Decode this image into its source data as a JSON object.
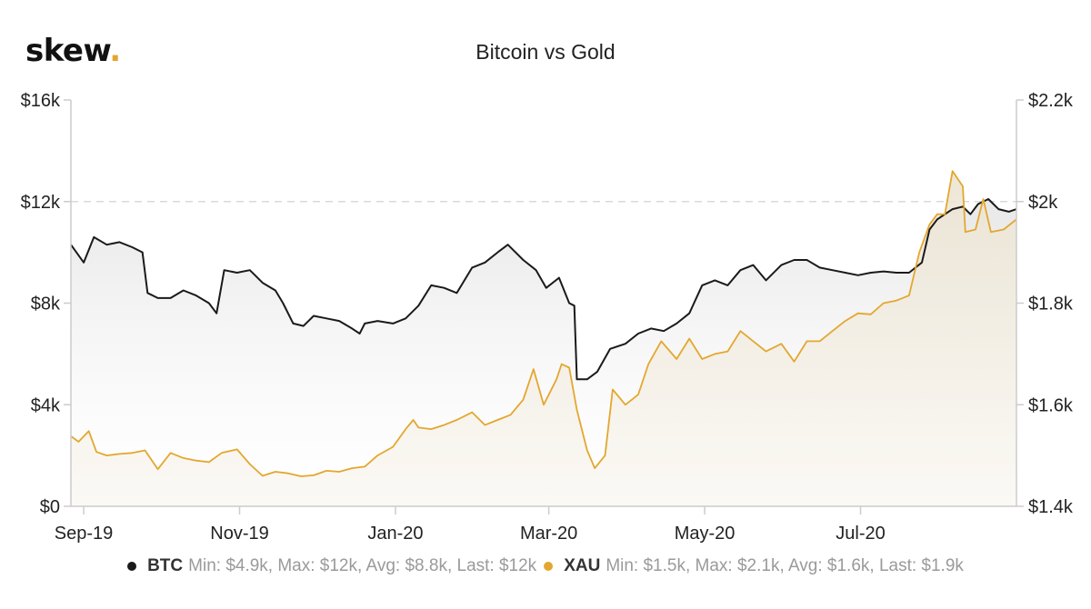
{
  "header": {
    "logo_text": "skew",
    "logo_dot": "."
  },
  "chart_data": {
    "type": "line",
    "title": "Bitcoin vs Gold",
    "x_ticks": [
      {
        "label": "Sep-19",
        "date": "2019-09-01"
      },
      {
        "label": "Nov-19",
        "date": "2019-11-01"
      },
      {
        "label": "Jan-20",
        "date": "2020-01-01"
      },
      {
        "label": "Mar-20",
        "date": "2020-03-01"
      },
      {
        "label": "May-20",
        "date": "2020-05-01"
      },
      {
        "label": "Jul-20",
        "date": "2020-07-01"
      }
    ],
    "x_range": [
      "2019-08-27",
      "2020-08-31"
    ],
    "y_left": {
      "range": [
        0,
        16000
      ],
      "ticks": [
        {
          "value": 0,
          "label": "$0"
        },
        {
          "value": 4000,
          "label": "$4k"
        },
        {
          "value": 8000,
          "label": "$8k"
        },
        {
          "value": 12000,
          "label": "$12k"
        },
        {
          "value": 16000,
          "label": "$16k"
        }
      ]
    },
    "y_right": {
      "range": [
        1400,
        2200
      ],
      "ticks": [
        {
          "value": 1400,
          "label": "$1.4k"
        },
        {
          "value": 1600,
          "label": "$1.6k"
        },
        {
          "value": 1800,
          "label": "$1.8k"
        },
        {
          "value": 2000,
          "label": "$2k"
        },
        {
          "value": 2200,
          "label": "$2.2k"
        }
      ]
    },
    "grid": "horizontal dashed at $12k",
    "legend_position": "bottom",
    "series": [
      {
        "name": "BTC",
        "axis": "left",
        "color": "#1a1a1a",
        "stats": "Min: $4.9k, Max: $12k, Avg: $8.8k, Last: $12k",
        "points": [
          [
            "2019-08-27",
            10300
          ],
          [
            "2019-09-01",
            9600
          ],
          [
            "2019-09-05",
            10600
          ],
          [
            "2019-09-10",
            10300
          ],
          [
            "2019-09-15",
            10400
          ],
          [
            "2019-09-20",
            10200
          ],
          [
            "2019-09-24",
            10000
          ],
          [
            "2019-09-26",
            8400
          ],
          [
            "2019-09-30",
            8200
          ],
          [
            "2019-10-05",
            8200
          ],
          [
            "2019-10-10",
            8500
          ],
          [
            "2019-10-15",
            8300
          ],
          [
            "2019-10-20",
            8000
          ],
          [
            "2019-10-23",
            7600
          ],
          [
            "2019-10-26",
            9300
          ],
          [
            "2019-10-31",
            9200
          ],
          [
            "2019-11-05",
            9300
          ],
          [
            "2019-11-10",
            8800
          ],
          [
            "2019-11-15",
            8500
          ],
          [
            "2019-11-18",
            8000
          ],
          [
            "2019-11-22",
            7200
          ],
          [
            "2019-11-26",
            7100
          ],
          [
            "2019-11-30",
            7500
          ],
          [
            "2019-12-05",
            7400
          ],
          [
            "2019-12-10",
            7300
          ],
          [
            "2019-12-15",
            7000
          ],
          [
            "2019-12-18",
            6800
          ],
          [
            "2019-12-20",
            7200
          ],
          [
            "2019-12-25",
            7300
          ],
          [
            "2019-12-31",
            7200
          ],
          [
            "2020-01-05",
            7400
          ],
          [
            "2020-01-10",
            7900
          ],
          [
            "2020-01-15",
            8700
          ],
          [
            "2020-01-20",
            8600
          ],
          [
            "2020-01-25",
            8400
          ],
          [
            "2020-01-31",
            9400
          ],
          [
            "2020-02-05",
            9600
          ],
          [
            "2020-02-10",
            10000
          ],
          [
            "2020-02-14",
            10300
          ],
          [
            "2020-02-20",
            9700
          ],
          [
            "2020-02-25",
            9300
          ],
          [
            "2020-02-29",
            8600
          ],
          [
            "2020-03-05",
            9000
          ],
          [
            "2020-03-09",
            8000
          ],
          [
            "2020-03-11",
            7900
          ],
          [
            "2020-03-12",
            5000
          ],
          [
            "2020-03-16",
            5000
          ],
          [
            "2020-03-20",
            5300
          ],
          [
            "2020-03-25",
            6200
          ],
          [
            "2020-03-31",
            6400
          ],
          [
            "2020-04-05",
            6800
          ],
          [
            "2020-04-10",
            7000
          ],
          [
            "2020-04-15",
            6900
          ],
          [
            "2020-04-20",
            7200
          ],
          [
            "2020-04-25",
            7600
          ],
          [
            "2020-04-30",
            8700
          ],
          [
            "2020-05-05",
            8900
          ],
          [
            "2020-05-10",
            8700
          ],
          [
            "2020-05-15",
            9300
          ],
          [
            "2020-05-20",
            9500
          ],
          [
            "2020-05-25",
            8900
          ],
          [
            "2020-05-31",
            9500
          ],
          [
            "2020-06-05",
            9700
          ],
          [
            "2020-06-10",
            9700
          ],
          [
            "2020-06-15",
            9400
          ],
          [
            "2020-06-20",
            9300
          ],
          [
            "2020-06-25",
            9200
          ],
          [
            "2020-06-30",
            9100
          ],
          [
            "2020-07-05",
            9200
          ],
          [
            "2020-07-10",
            9250
          ],
          [
            "2020-07-15",
            9200
          ],
          [
            "2020-07-20",
            9200
          ],
          [
            "2020-07-25",
            9600
          ],
          [
            "2020-07-28",
            10900
          ],
          [
            "2020-07-31",
            11300
          ],
          [
            "2020-08-03",
            11500
          ],
          [
            "2020-08-06",
            11700
          ],
          [
            "2020-08-10",
            11800
          ],
          [
            "2020-08-13",
            11500
          ],
          [
            "2020-08-16",
            11900
          ],
          [
            "2020-08-20",
            12100
          ],
          [
            "2020-08-24",
            11700
          ],
          [
            "2020-08-28",
            11600
          ],
          [
            "2020-08-31",
            11700
          ]
        ]
      },
      {
        "name": "XAU",
        "axis": "right",
        "color": "#e3a72f",
        "stats": "Min: $1.5k, Max: $2.1k, Avg: $1.6k, Last: $1.9k",
        "points": [
          [
            "2019-08-27",
            1538
          ],
          [
            "2019-08-30",
            1527
          ],
          [
            "2019-09-03",
            1548
          ],
          [
            "2019-09-06",
            1507
          ],
          [
            "2019-09-10",
            1500
          ],
          [
            "2019-09-15",
            1503
          ],
          [
            "2019-09-20",
            1505
          ],
          [
            "2019-09-25",
            1510
          ],
          [
            "2019-09-30",
            1473
          ],
          [
            "2019-10-05",
            1505
          ],
          [
            "2019-10-10",
            1495
          ],
          [
            "2019-10-15",
            1490
          ],
          [
            "2019-10-20",
            1487
          ],
          [
            "2019-10-25",
            1505
          ],
          [
            "2019-10-31",
            1512
          ],
          [
            "2019-11-05",
            1483
          ],
          [
            "2019-11-10",
            1460
          ],
          [
            "2019-11-15",
            1468
          ],
          [
            "2019-11-20",
            1465
          ],
          [
            "2019-11-25",
            1459
          ],
          [
            "2019-11-30",
            1461
          ],
          [
            "2019-12-05",
            1470
          ],
          [
            "2019-12-10",
            1468
          ],
          [
            "2019-12-15",
            1475
          ],
          [
            "2019-12-20",
            1478
          ],
          [
            "2019-12-25",
            1500
          ],
          [
            "2019-12-31",
            1517
          ],
          [
            "2020-01-05",
            1552
          ],
          [
            "2020-01-08",
            1570
          ],
          [
            "2020-01-10",
            1555
          ],
          [
            "2020-01-15",
            1552
          ],
          [
            "2020-01-20",
            1560
          ],
          [
            "2020-01-25",
            1570
          ],
          [
            "2020-01-31",
            1585
          ],
          [
            "2020-02-05",
            1560
          ],
          [
            "2020-02-10",
            1570
          ],
          [
            "2020-02-15",
            1580
          ],
          [
            "2020-02-20",
            1610
          ],
          [
            "2020-02-24",
            1670
          ],
          [
            "2020-02-28",
            1600
          ],
          [
            "2020-03-04",
            1650
          ],
          [
            "2020-03-06",
            1680
          ],
          [
            "2020-03-09",
            1673
          ],
          [
            "2020-03-12",
            1590
          ],
          [
            "2020-03-16",
            1510
          ],
          [
            "2020-03-19",
            1475
          ],
          [
            "2020-03-23",
            1500
          ],
          [
            "2020-03-26",
            1630
          ],
          [
            "2020-03-31",
            1600
          ],
          [
            "2020-04-05",
            1620
          ],
          [
            "2020-04-09",
            1680
          ],
          [
            "2020-04-14",
            1725
          ],
          [
            "2020-04-20",
            1690
          ],
          [
            "2020-04-25",
            1730
          ],
          [
            "2020-04-30",
            1690
          ],
          [
            "2020-05-05",
            1700
          ],
          [
            "2020-05-10",
            1705
          ],
          [
            "2020-05-15",
            1745
          ],
          [
            "2020-05-20",
            1725
          ],
          [
            "2020-05-25",
            1705
          ],
          [
            "2020-05-31",
            1720
          ],
          [
            "2020-06-05",
            1685
          ],
          [
            "2020-06-10",
            1725
          ],
          [
            "2020-06-15",
            1725
          ],
          [
            "2020-06-20",
            1745
          ],
          [
            "2020-06-25",
            1765
          ],
          [
            "2020-06-30",
            1780
          ],
          [
            "2020-07-05",
            1778
          ],
          [
            "2020-07-10",
            1800
          ],
          [
            "2020-07-15",
            1805
          ],
          [
            "2020-07-20",
            1815
          ],
          [
            "2020-07-24",
            1900
          ],
          [
            "2020-07-28",
            1955
          ],
          [
            "2020-07-31",
            1975
          ],
          [
            "2020-08-03",
            1975
          ],
          [
            "2020-08-06",
            2060
          ],
          [
            "2020-08-10",
            2030
          ],
          [
            "2020-08-11",
            1940
          ],
          [
            "2020-08-15",
            1945
          ],
          [
            "2020-08-18",
            2005
          ],
          [
            "2020-08-21",
            1940
          ],
          [
            "2020-08-26",
            1945
          ],
          [
            "2020-08-31",
            1965
          ]
        ]
      }
    ]
  }
}
